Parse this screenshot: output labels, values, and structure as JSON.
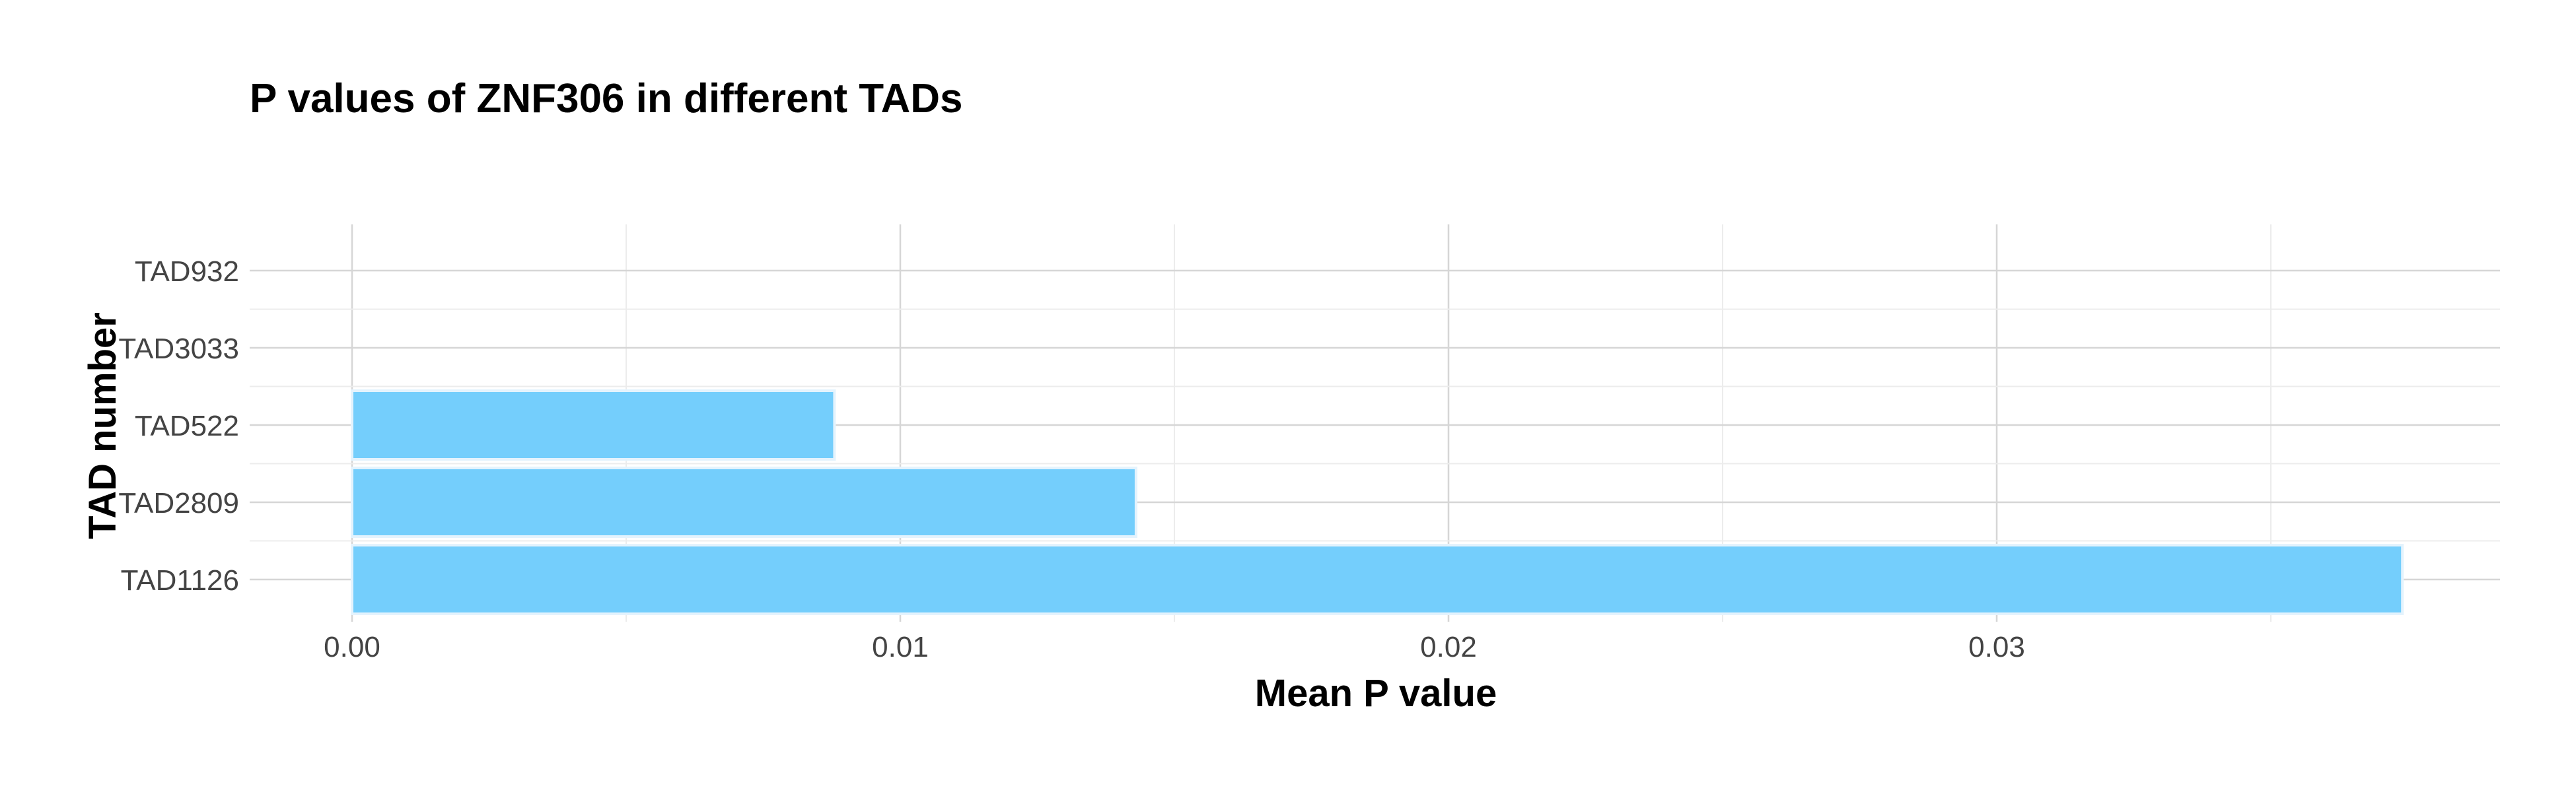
{
  "chart_data": {
    "type": "bar",
    "orientation": "horizontal",
    "title": "P values of ZNF306 in different TADs",
    "xlabel": "Mean P value",
    "ylabel": "TAD number",
    "categories": [
      "TAD1126",
      "TAD2809",
      "TAD522",
      "TAD3033",
      "TAD932"
    ],
    "values": [
      0.0374,
      0.0143,
      0.0088,
      0.0,
      0.0
    ],
    "xlim": [
      0.0,
      0.0393
    ],
    "x_ticks": [
      0.0,
      0.01,
      0.02,
      0.03
    ],
    "x_tick_labels": [
      "0.00",
      "0.01",
      "0.02",
      "0.03"
    ],
    "grid": true,
    "legend": "none",
    "colors": {
      "bar_fill": "#74cefc",
      "bar_outline": "#e4f3fd",
      "grid_major": "#d6d6d6",
      "grid_minor": "#ececec",
      "tick_text": "#444444",
      "title_text": "#000000"
    }
  }
}
